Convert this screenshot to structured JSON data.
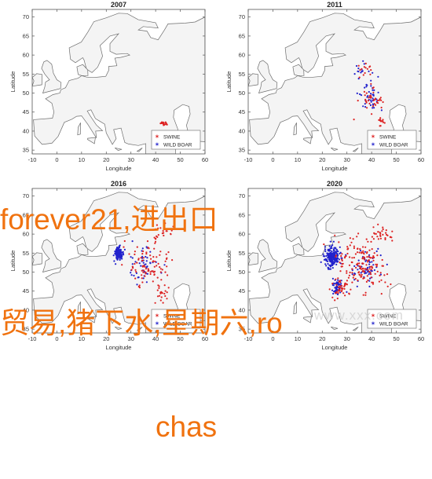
{
  "panels": [
    {
      "title": "2007"
    },
    {
      "title": "2011"
    },
    {
      "title": "2016"
    },
    {
      "title": "2020"
    }
  ],
  "axes": {
    "x_ticks": [
      "-10",
      "0",
      "10",
      "20",
      "30",
      "40",
      "50",
      "60"
    ],
    "y_ticks": [
      "70",
      "65",
      "60",
      "55",
      "50",
      "45",
      "40",
      "35"
    ],
    "xlabel": "Longitude",
    "ylabel": "Latitude",
    "xlim": [
      -10,
      60
    ],
    "ylim": [
      34,
      72
    ]
  },
  "legend": {
    "placement": "bottom-right",
    "entries": [
      {
        "label": "SWINE",
        "color": "#dd2222",
        "marker": "star"
      },
      {
        "label": "WILD BOAR",
        "color": "#2222cc",
        "marker": "star"
      }
    ]
  },
  "colors": {
    "swine": "#dd2222",
    "wild_boar": "#2222cc",
    "overlay_text": "#f0720f"
  },
  "chart_data": [
    {
      "type": "scatter",
      "title": "2007",
      "xlabel": "Longitude",
      "ylabel": "Latitude",
      "series": [
        {
          "name": "SWINE",
          "clusters": [
            {
              "lon": 43.5,
              "lat": 42.0,
              "spread": [
                1.2,
                0.5
              ],
              "n": 20
            }
          ]
        },
        {
          "name": "WILD BOAR",
          "clusters": []
        }
      ]
    },
    {
      "type": "scatter",
      "title": "2011",
      "xlabel": "Longitude",
      "ylabel": "Latitude",
      "series": [
        {
          "name": "SWINE",
          "clusters": [
            {
              "lon": 40,
              "lat": 47.5,
              "spread": [
                4,
                3
              ],
              "n": 40
            },
            {
              "lon": 43.5,
              "lat": 42.5,
              "spread": [
                1.5,
                1
              ],
              "n": 14
            },
            {
              "lon": 37,
              "lat": 56,
              "spread": [
                3,
                1.5
              ],
              "n": 14
            }
          ]
        },
        {
          "name": "WILD BOAR",
          "clusters": [
            {
              "lon": 39,
              "lat": 49,
              "spread": [
                4,
                4
              ],
              "n": 40
            },
            {
              "lon": 36,
              "lat": 56,
              "spread": [
                3,
                2
              ],
              "n": 14
            }
          ]
        }
      ]
    },
    {
      "type": "scatter",
      "title": "2016",
      "xlabel": "Longitude",
      "ylabel": "Latitude",
      "series": [
        {
          "name": "SWINE",
          "clusters": [
            {
              "lon": 37,
              "lat": 52,
              "spread": [
                7,
                5
              ],
              "n": 90
            },
            {
              "lon": 42,
              "lat": 61,
              "spread": [
                4,
                2
              ],
              "n": 20
            },
            {
              "lon": 43,
              "lat": 44,
              "spread": [
                3,
                2
              ],
              "n": 20
            }
          ]
        },
        {
          "name": "WILD BOAR",
          "clusters": [
            {
              "lon": 25,
              "lat": 55,
              "spread": [
                1.5,
                1.5
              ],
              "n": 130
            },
            {
              "lon": 35,
              "lat": 52,
              "spread": [
                5,
                4
              ],
              "n": 50
            }
          ]
        }
      ]
    },
    {
      "type": "scatter",
      "title": "2020",
      "xlabel": "Longitude",
      "ylabel": "Latitude",
      "series": [
        {
          "name": "SWINE",
          "clusters": [
            {
              "lon": 36,
              "lat": 52,
              "spread": [
                9,
                6
              ],
              "n": 160
            },
            {
              "lon": 28,
              "lat": 46,
              "spread": [
                4,
                2.5
              ],
              "n": 40
            },
            {
              "lon": 44,
              "lat": 60,
              "spread": [
                5,
                2
              ],
              "n": 30
            }
          ]
        },
        {
          "name": "WILD BOAR",
          "clusters": [
            {
              "lon": 24,
              "lat": 54,
              "spread": [
                3,
                2.5
              ],
              "n": 200
            },
            {
              "lon": 26,
              "lat": 46,
              "spread": [
                2,
                2
              ],
              "n": 60
            },
            {
              "lon": 38,
              "lat": 51,
              "spread": [
                6,
                4
              ],
              "n": 60
            }
          ]
        }
      ]
    }
  ],
  "overlay": {
    "line1": "forever21,进出口",
    "line2": "贸易,猪下水,星期六,ro",
    "line3": "chas"
  },
  "watermark": {
    "text": "www.xxx.com"
  }
}
